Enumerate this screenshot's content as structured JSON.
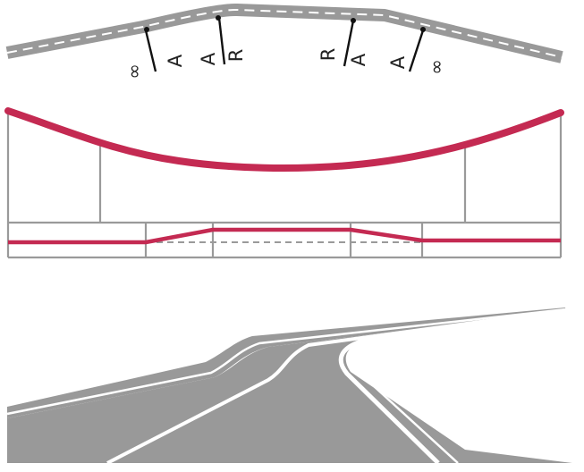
{
  "diagram": {
    "plan_view": {
      "transition_marks": [
        {
          "label_a": "∞",
          "label_b": "A"
        },
        {
          "label_a": "A",
          "label_b": "R"
        },
        {
          "label_a": "R",
          "label_b": "A"
        },
        {
          "label_a": "A",
          "label_b": "∞"
        }
      ]
    },
    "colors": {
      "road": "#999999",
      "curvature": "#c42a52",
      "frame": "#9a9a9a",
      "marker": "#111111",
      "lane_marking": "#ffffff"
    },
    "icons": [
      "infinity-symbol",
      "road-perspective"
    ]
  }
}
